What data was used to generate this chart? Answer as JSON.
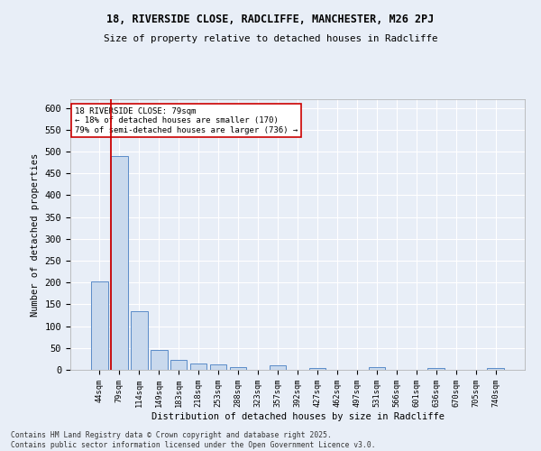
{
  "title1": "18, RIVERSIDE CLOSE, RADCLIFFE, MANCHESTER, M26 2PJ",
  "title2": "Size of property relative to detached houses in Radcliffe",
  "xlabel": "Distribution of detached houses by size in Radcliffe",
  "ylabel": "Number of detached properties",
  "categories": [
    "44sqm",
    "79sqm",
    "114sqm",
    "149sqm",
    "183sqm",
    "218sqm",
    "253sqm",
    "288sqm",
    "323sqm",
    "357sqm",
    "392sqm",
    "427sqm",
    "462sqm",
    "497sqm",
    "531sqm",
    "566sqm",
    "601sqm",
    "636sqm",
    "670sqm",
    "705sqm",
    "740sqm"
  ],
  "values": [
    203,
    490,
    135,
    46,
    22,
    15,
    12,
    7,
    0,
    10,
    0,
    5,
    0,
    0,
    7,
    0,
    0,
    5,
    0,
    0,
    5
  ],
  "bar_color": "#c9d9ed",
  "bar_edge_color": "#5b8cc8",
  "redline_index": 1,
  "annotation_text": "18 RIVERSIDE CLOSE: 79sqm\n← 18% of detached houses are smaller (170)\n79% of semi-detached houses are larger (736) →",
  "annotation_box_color": "#ffffff",
  "annotation_box_edge": "#cc0000",
  "background_color": "#e8eef7",
  "plot_bg_color": "#e8eef7",
  "footer": "Contains HM Land Registry data © Crown copyright and database right 2025.\nContains public sector information licensed under the Open Government Licence v3.0.",
  "ylim": [
    0,
    620
  ],
  "yticks": [
    0,
    50,
    100,
    150,
    200,
    250,
    300,
    350,
    400,
    450,
    500,
    550,
    600
  ]
}
